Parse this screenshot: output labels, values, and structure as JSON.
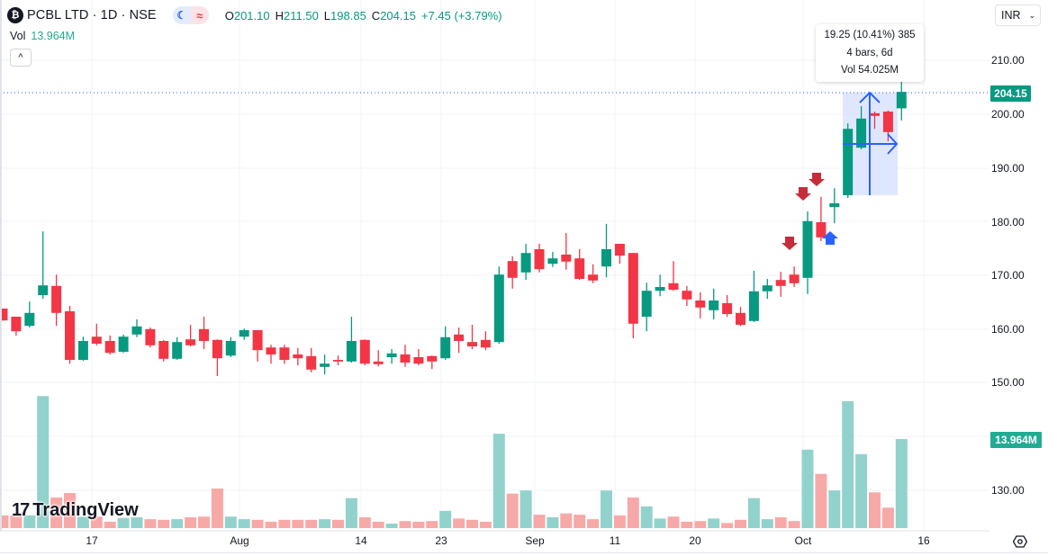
{
  "header": {
    "symbol_logo": "₿",
    "title": "PCBL LTD · 1D · NSE",
    "pill_a_icon": "☾",
    "pill_b_icon": "≈",
    "ohlc": {
      "o_label": "O",
      "o": "201.10",
      "h_label": "H",
      "h": "211.50",
      "l_label": "L",
      "l": "198.85",
      "c_label": "C",
      "c": "204.15",
      "change": "+7.45 (+3.79%)"
    },
    "volume_label": "Vol",
    "volume_value": "13.964M",
    "collapse_icon": "^"
  },
  "currency": {
    "value": "INR",
    "chevron": "⌄"
  },
  "tooltip": {
    "line1": "19.25 (10.41%) 385",
    "line2": "4 bars, 6d",
    "line3": "Vol 54.025M"
  },
  "price_axis": {
    "labels": [
      "210.00",
      "200.00",
      "190.00",
      "180.00",
      "170.00",
      "160.00",
      "150.00",
      "130.00"
    ],
    "last_price": "204.15",
    "last_volume": "13.964M"
  },
  "time_axis": {
    "labels": [
      "17",
      "Aug",
      "14",
      "23",
      "Sep",
      "11",
      "20",
      "Oct",
      "16"
    ]
  },
  "watermark": {
    "logo": "17",
    "text": "TradingView"
  },
  "colors": {
    "up": "#089981",
    "down": "#f23645",
    "vol_up": "#92d2cc",
    "vol_down": "#f7a9a7",
    "grid": "#f0f3fa",
    "measure_fill": "#dbe4ff",
    "measure_line": "#2962ff",
    "marker_down": "#c62d3a",
    "marker_up": "#2962ff"
  },
  "chart_data": {
    "type": "candlestick",
    "title": "PCBL LTD · 1D · NSE",
    "ylabel": "INR",
    "ylim": [
      126,
      214
    ],
    "x_tick_labels": [
      "17",
      "Aug",
      "14",
      "23",
      "Sep",
      "11",
      "20",
      "Oct",
      "16"
    ],
    "y_tick_labels": [
      "210.00",
      "200.00",
      "190.00",
      "180.00",
      "170.00",
      "160.00",
      "150.00",
      "130.00"
    ],
    "last": {
      "open": 201.1,
      "high": 211.5,
      "low": 198.85,
      "close": 204.15,
      "change": 7.45,
      "change_pct": 3.79,
      "volume_m": 13.964
    },
    "measure": {
      "change": 19.25,
      "change_pct": 10.41,
      "ticks": 385,
      "bars": 4,
      "days": "6d",
      "volume_m": 54.025
    },
    "candles": [
      {
        "o": 164.0,
        "h": 164.0,
        "l": 161.8,
        "c": 161.8,
        "v": 2.0
      },
      {
        "o": 162.5,
        "h": 162.5,
        "l": 159.0,
        "c": 159.8,
        "v": 2.0
      },
      {
        "o": 160.8,
        "h": 165.3,
        "l": 160.5,
        "c": 163.2,
        "v": 2.0
      },
      {
        "o": 166.5,
        "h": 178.3,
        "l": 165.8,
        "c": 168.3,
        "v": 20.7
      },
      {
        "o": 168.2,
        "h": 170.3,
        "l": 160.8,
        "c": 163.2,
        "v": 4.8
      },
      {
        "o": 163.5,
        "h": 164.5,
        "l": 153.8,
        "c": 154.5,
        "v": 5.5
      },
      {
        "o": 154.5,
        "h": 158.8,
        "l": 154.3,
        "c": 158.0,
        "v": 1.8
      },
      {
        "o": 158.8,
        "h": 161.2,
        "l": 157.2,
        "c": 157.5,
        "v": 1.8
      },
      {
        "o": 158.0,
        "h": 159.0,
        "l": 155.5,
        "c": 155.8,
        "v": 1.0
      },
      {
        "o": 156.0,
        "h": 159.2,
        "l": 155.8,
        "c": 158.8,
        "v": 1.6
      },
      {
        "o": 159.2,
        "h": 162.0,
        "l": 158.7,
        "c": 160.7,
        "v": 1.7
      },
      {
        "o": 160.2,
        "h": 160.5,
        "l": 156.8,
        "c": 157.2,
        "v": 1.4
      },
      {
        "o": 158.0,
        "h": 158.2,
        "l": 154.2,
        "c": 154.7,
        "v": 1.3
      },
      {
        "o": 154.7,
        "h": 158.7,
        "l": 154.5,
        "c": 157.8,
        "v": 1.4
      },
      {
        "o": 158.3,
        "h": 161.0,
        "l": 157.0,
        "c": 157.2,
        "v": 1.7
      },
      {
        "o": 160.2,
        "h": 162.5,
        "l": 156.5,
        "c": 158.0,
        "v": 1.8
      },
      {
        "o": 158.2,
        "h": 158.3,
        "l": 151.5,
        "c": 154.8,
        "v": 6.2
      },
      {
        "o": 155.3,
        "h": 158.7,
        "l": 155.0,
        "c": 158.0,
        "v": 1.8
      },
      {
        "o": 158.8,
        "h": 160.3,
        "l": 158.2,
        "c": 160.0,
        "v": 1.4
      },
      {
        "o": 160.0,
        "h": 160.0,
        "l": 154.2,
        "c": 156.3,
        "v": 1.3
      },
      {
        "o": 156.8,
        "h": 157.3,
        "l": 153.8,
        "c": 155.5,
        "v": 1.0
      },
      {
        "o": 156.8,
        "h": 157.3,
        "l": 153.8,
        "c": 154.5,
        "v": 1.3
      },
      {
        "o": 155.5,
        "h": 156.7,
        "l": 153.5,
        "c": 154.8,
        "v": 1.3
      },
      {
        "o": 155.2,
        "h": 156.7,
        "l": 152.2,
        "c": 152.7,
        "v": 1.3
      },
      {
        "o": 153.2,
        "h": 155.5,
        "l": 151.8,
        "c": 153.8,
        "v": 1.4
      },
      {
        "o": 154.5,
        "h": 155.3,
        "l": 153.5,
        "c": 154.2,
        "v": 1.3
      },
      {
        "o": 154.2,
        "h": 162.5,
        "l": 154.0,
        "c": 158.0,
        "v": 4.7
      },
      {
        "o": 158.2,
        "h": 158.3,
        "l": 153.5,
        "c": 153.8,
        "v": 1.7
      },
      {
        "o": 154.2,
        "h": 156.3,
        "l": 153.3,
        "c": 153.7,
        "v": 1.0
      },
      {
        "o": 155.0,
        "h": 156.5,
        "l": 153.8,
        "c": 155.7,
        "v": 0.7
      },
      {
        "o": 155.5,
        "h": 157.3,
        "l": 153.2,
        "c": 154.0,
        "v": 1.1
      },
      {
        "o": 155.0,
        "h": 156.5,
        "l": 153.5,
        "c": 153.8,
        "v": 1.0
      },
      {
        "o": 155.2,
        "h": 155.3,
        "l": 152.8,
        "c": 154.2,
        "v": 1.1
      },
      {
        "o": 154.8,
        "h": 160.7,
        "l": 154.5,
        "c": 158.7,
        "v": 2.7
      },
      {
        "o": 159.2,
        "h": 160.5,
        "l": 155.8,
        "c": 158.0,
        "v": 1.5
      },
      {
        "o": 157.8,
        "h": 161.0,
        "l": 156.5,
        "c": 157.0,
        "v": 1.3
      },
      {
        "o": 158.2,
        "h": 159.8,
        "l": 156.3,
        "c": 156.8,
        "v": 1.0
      },
      {
        "o": 157.8,
        "h": 171.8,
        "l": 157.5,
        "c": 170.3,
        "v": 14.8
      },
      {
        "o": 172.8,
        "h": 173.7,
        "l": 167.7,
        "c": 169.7,
        "v": 5.4
      },
      {
        "o": 170.7,
        "h": 176.0,
        "l": 169.3,
        "c": 174.3,
        "v": 5.9
      },
      {
        "o": 175.0,
        "h": 176.0,
        "l": 170.7,
        "c": 171.3,
        "v": 2.1
      },
      {
        "o": 172.3,
        "h": 174.5,
        "l": 171.7,
        "c": 173.3,
        "v": 1.7
      },
      {
        "o": 174.0,
        "h": 178.0,
        "l": 171.2,
        "c": 172.7,
        "v": 2.3
      },
      {
        "o": 173.3,
        "h": 175.0,
        "l": 169.3,
        "c": 169.5,
        "v": 2.1
      },
      {
        "o": 170.3,
        "h": 172.2,
        "l": 168.7,
        "c": 169.2,
        "v": 1.4
      },
      {
        "o": 171.8,
        "h": 179.7,
        "l": 169.8,
        "c": 175.0,
        "v": 5.9
      },
      {
        "o": 176.0,
        "h": 176.0,
        "l": 172.3,
        "c": 173.8,
        "v": 2.0
      },
      {
        "o": 174.3,
        "h": 174.3,
        "l": 158.5,
        "c": 161.2,
        "v": 4.8
      },
      {
        "o": 162.5,
        "h": 168.8,
        "l": 159.8,
        "c": 167.3,
        "v": 3.4
      },
      {
        "o": 167.3,
        "h": 170.3,
        "l": 166.3,
        "c": 168.0,
        "v": 1.5
      },
      {
        "o": 168.7,
        "h": 172.8,
        "l": 167.3,
        "c": 167.5,
        "v": 1.8
      },
      {
        "o": 167.3,
        "h": 168.2,
        "l": 164.5,
        "c": 165.7,
        "v": 1.0
      },
      {
        "o": 165.5,
        "h": 167.0,
        "l": 162.2,
        "c": 164.2,
        "v": 1.1
      },
      {
        "o": 163.7,
        "h": 167.7,
        "l": 162.0,
        "c": 165.5,
        "v": 1.5
      },
      {
        "o": 165.0,
        "h": 166.5,
        "l": 162.5,
        "c": 163.0,
        "v": 0.8
      },
      {
        "o": 163.2,
        "h": 164.3,
        "l": 160.8,
        "c": 161.0,
        "v": 1.3
      },
      {
        "o": 161.7,
        "h": 171.0,
        "l": 161.5,
        "c": 167.2,
        "v": 4.7
      },
      {
        "o": 167.2,
        "h": 169.5,
        "l": 165.8,
        "c": 168.3,
        "v": 1.4
      },
      {
        "o": 169.3,
        "h": 170.8,
        "l": 166.2,
        "c": 168.2,
        "v": 1.7
      },
      {
        "o": 170.3,
        "h": 171.8,
        "l": 168.0,
        "c": 168.7,
        "v": 1.1
      },
      {
        "o": 169.7,
        "h": 182.0,
        "l": 166.7,
        "c": 180.2,
        "v": 12.3
      },
      {
        "o": 180.0,
        "h": 184.7,
        "l": 176.5,
        "c": 177.2,
        "v": 8.5
      },
      {
        "o": 182.8,
        "h": 186.3,
        "l": 179.8,
        "c": 183.5,
        "v": 5.9
      },
      {
        "o": 185.0,
        "h": 198.3,
        "l": 184.5,
        "c": 197.3,
        "v": 19.9
      },
      {
        "o": 193.8,
        "h": 201.5,
        "l": 193.5,
        "c": 199.2,
        "v": 11.6
      },
      {
        "o": 200.2,
        "h": 200.5,
        "l": 197.3,
        "c": 199.7,
        "v": 5.6
      },
      {
        "o": 200.5,
        "h": 200.7,
        "l": 195.0,
        "c": 196.7,
        "v": 3.2
      },
      {
        "o": 201.1,
        "h": 211.5,
        "l": 198.85,
        "c": 204.15,
        "v": 13.964
      }
    ],
    "markers": [
      {
        "index": 59,
        "type": "arrow-down",
        "price": 172.5
      },
      {
        "index": 60,
        "type": "arrow-down",
        "price": 183.5
      },
      {
        "index": 61,
        "type": "arrow-down",
        "price": 186.5
      },
      {
        "index": 62,
        "type": "arrow-up",
        "price": 178.0
      }
    ]
  }
}
